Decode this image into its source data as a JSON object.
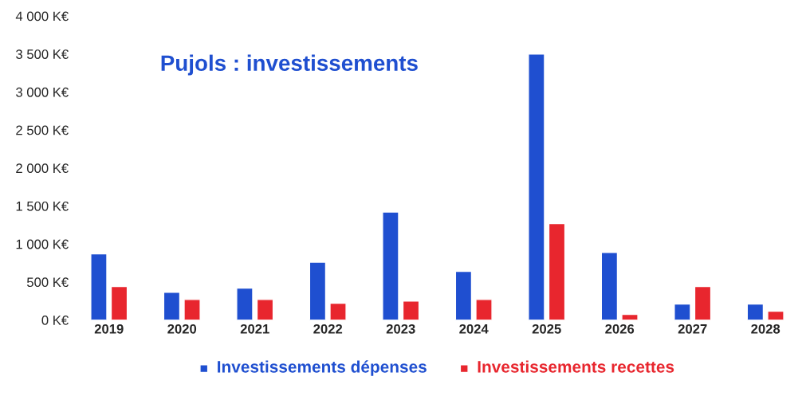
{
  "chart_data": {
    "type": "bar",
    "title": "Pujols : investissements",
    "categories": [
      "2019",
      "2020",
      "2021",
      "2022",
      "2023",
      "2024",
      "2025",
      "2026",
      "2027",
      "2028"
    ],
    "series": [
      {
        "name": "Investissements dépenses",
        "color": "#1f4fd0",
        "values": [
          870,
          365,
          420,
          760,
          1420,
          640,
          3500,
          890,
          210,
          210
        ]
      },
      {
        "name": "Investissements recettes",
        "color": "#e8262e",
        "values": [
          440,
          270,
          270,
          220,
          250,
          270,
          1270,
          75,
          440,
          115
        ]
      }
    ],
    "ylim": [
      0,
      4000
    ],
    "yticks": [
      {
        "value": 0,
        "label": "0 K€"
      },
      {
        "value": 500,
        "label": "500 K€"
      },
      {
        "value": 1000,
        "label": "1 000 K€"
      },
      {
        "value": 1500,
        "label": "1 500 K€"
      },
      {
        "value": 2000,
        "label": "2 000 K€"
      },
      {
        "value": 2500,
        "label": "2 500 K€"
      },
      {
        "value": 3000,
        "label": "3 000 K€"
      },
      {
        "value": 3500,
        "label": "3 500 K€"
      },
      {
        "value": 4000,
        "label": "4 000 K€"
      }
    ],
    "grid": false,
    "legend": "bottom"
  }
}
